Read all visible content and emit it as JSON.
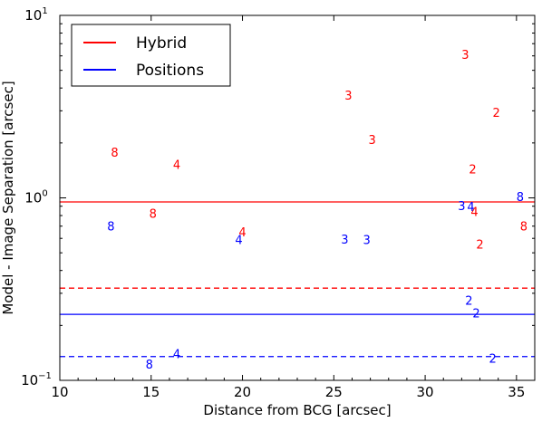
{
  "chart_data": {
    "type": "scatter",
    "xlabel": "Distance from BCG [arcsec]",
    "ylabel": "Model - Image Separation [arcsec]",
    "xlim": [
      10,
      36
    ],
    "ylim": [
      0.1,
      10
    ],
    "yscale": "log",
    "x_ticks": [
      10,
      15,
      20,
      25,
      30,
      35
    ],
    "y_ticks": [
      {
        "value": 0.1,
        "base": "10",
        "exp": "−1"
      },
      {
        "value": 1,
        "base": "10",
        "exp": "0"
      },
      {
        "value": 10,
        "base": "10",
        "exp": "1"
      }
    ],
    "grid": false,
    "legend_position": "top-left",
    "series": [
      {
        "name": "Hybrid",
        "color": "#ff0000",
        "median": 0.95,
        "dashed": 0.32,
        "points": [
          {
            "x": 13.0,
            "y": 1.75,
            "label": "8"
          },
          {
            "x": 16.4,
            "y": 1.5,
            "label": "4"
          },
          {
            "x": 15.1,
            "y": 0.81,
            "label": "8"
          },
          {
            "x": 20.0,
            "y": 0.64,
            "label": "4"
          },
          {
            "x": 25.8,
            "y": 3.6,
            "label": "3"
          },
          {
            "x": 27.1,
            "y": 2.05,
            "label": "3"
          },
          {
            "x": 32.2,
            "y": 6.0,
            "label": "3"
          },
          {
            "x": 33.9,
            "y": 2.9,
            "label": "2"
          },
          {
            "x": 32.6,
            "y": 1.42,
            "label": "2"
          },
          {
            "x": 32.7,
            "y": 0.83,
            "label": "4"
          },
          {
            "x": 33.0,
            "y": 0.55,
            "label": "2"
          },
          {
            "x": 35.4,
            "y": 0.69,
            "label": "8"
          }
        ]
      },
      {
        "name": "Positions",
        "color": "#0000ff",
        "median": 0.23,
        "dashed": 0.135,
        "points": [
          {
            "x": 12.8,
            "y": 0.69,
            "label": "8"
          },
          {
            "x": 19.8,
            "y": 0.58,
            "label": "4"
          },
          {
            "x": 25.6,
            "y": 0.585,
            "label": "3"
          },
          {
            "x": 26.8,
            "y": 0.58,
            "label": "3"
          },
          {
            "x": 32.0,
            "y": 0.89,
            "label": "3"
          },
          {
            "x": 32.5,
            "y": 0.88,
            "label": "4"
          },
          {
            "x": 35.2,
            "y": 1.0,
            "label": "8"
          },
          {
            "x": 32.4,
            "y": 0.27,
            "label": "2"
          },
          {
            "x": 32.8,
            "y": 0.23,
            "label": "2"
          },
          {
            "x": 33.7,
            "y": 0.13,
            "label": "2"
          },
          {
            "x": 16.4,
            "y": 0.138,
            "label": "4"
          },
          {
            "x": 14.9,
            "y": 0.121,
            "label": "8"
          }
        ]
      }
    ]
  }
}
